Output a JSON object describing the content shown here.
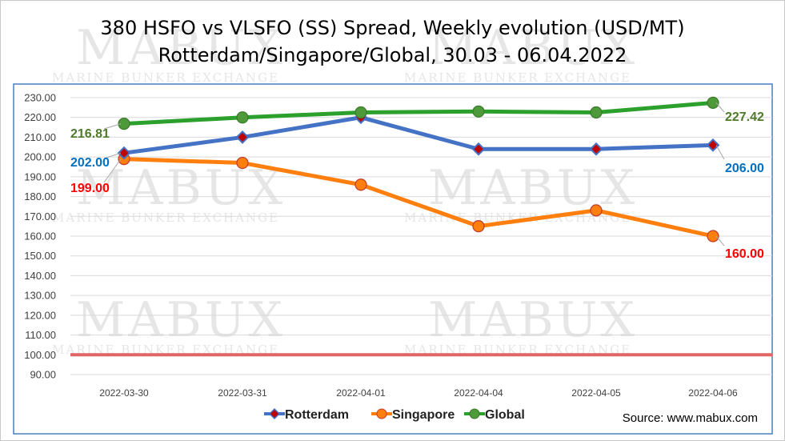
{
  "chart_data": {
    "type": "line",
    "title_lines": [
      "380 HSFO vs VLSFO (SS) Spread, Weekly evolution (USD/MT)",
      "Rotterdam/Singapore/Global, 30.03 - 06.04.2022"
    ],
    "categories": [
      "2022-03-30",
      "2022-03-31",
      "2022-04-01",
      "2022-04-04",
      "2022-04-05",
      "2022-04-06"
    ],
    "yticks": [
      "90.00",
      "100.00",
      "110.00",
      "120.00",
      "130.00",
      "140.00",
      "150.00",
      "160.00",
      "170.00",
      "180.00",
      "190.00",
      "200.00",
      "210.00",
      "220.00",
      "230.00"
    ],
    "ylim": [
      90,
      230
    ],
    "grid": true,
    "legend_position": "bottom",
    "reference_line": {
      "y": 100,
      "color": "#e06666"
    },
    "series": [
      {
        "name": "Rotterdam",
        "color": "#4472c4",
        "marker_color": "#c00000",
        "values": [
          202,
          210,
          220,
          204,
          204,
          206
        ],
        "first_label": "202.00",
        "last_label": "206.00",
        "label_color": "#0070c0"
      },
      {
        "name": "Singapore",
        "color": "#ff7f0e",
        "marker_color": "#ff7f0e",
        "values": [
          199,
          197,
          186,
          165,
          173,
          160
        ],
        "first_label": "199.00",
        "last_label": "160.00",
        "label_color": "#ff0000"
      },
      {
        "name": "Global",
        "color": "#2ca02c",
        "marker_color": "#4e9a3a",
        "values": [
          216.81,
          220,
          222.5,
          223,
          222.5,
          227.42
        ],
        "first_label": "216.81",
        "last_label": "227.42",
        "label_color": "#4e7a2a"
      }
    ],
    "watermark": {
      "big": "MABUX",
      "small": "MARINE BUNKER EXCHANGE"
    }
  },
  "source_note": "Source: www.mabux.com"
}
